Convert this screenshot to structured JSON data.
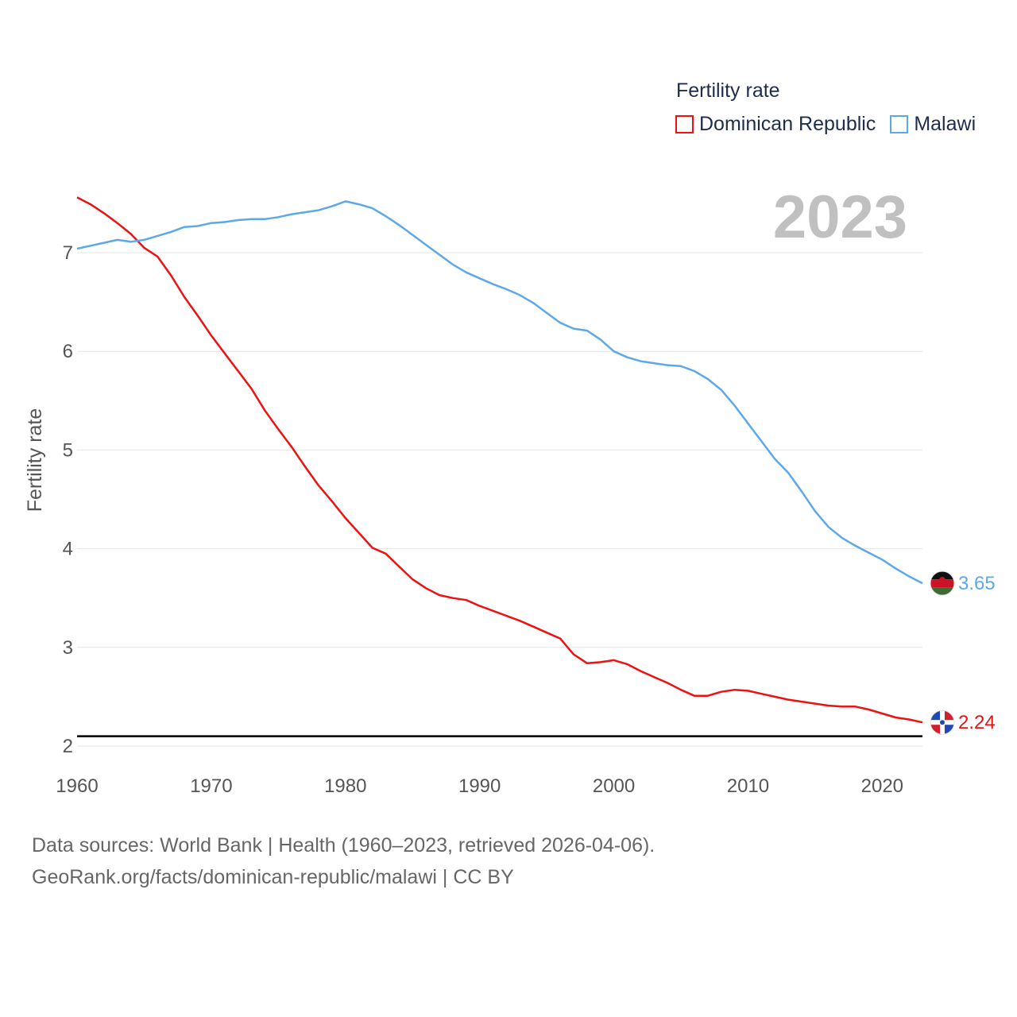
{
  "legend": {
    "title": "Fertility rate"
  },
  "year_label": "2023",
  "footer": {
    "line1": "Data sources: World Bank | Health (1960–2023, retrieved 2026-04-06).",
    "line2": "GeoRank.org/facts/dominican-republic/malawi | CC BY"
  },
  "colors": {
    "dominican": "#ee1111",
    "malawi": "#5fa8e8",
    "grid": "#e6e6e6",
    "axis_text": "#555555",
    "reference_line": "#000000"
  },
  "chart_data": {
    "type": "line",
    "title": "Fertility rate",
    "xlabel": "",
    "ylabel": "Fertility rate",
    "xlim": [
      1960,
      2023
    ],
    "ylim": [
      2,
      7.6
    ],
    "xticks": [
      1960,
      1970,
      1980,
      1990,
      2000,
      2010,
      2020
    ],
    "yticks": [
      2,
      3,
      4,
      5,
      6,
      7
    ],
    "reference_line": 2.1,
    "x": [
      1960,
      1961,
      1962,
      1963,
      1964,
      1965,
      1966,
      1967,
      1968,
      1969,
      1970,
      1971,
      1972,
      1973,
      1974,
      1975,
      1976,
      1977,
      1978,
      1979,
      1980,
      1981,
      1982,
      1983,
      1984,
      1985,
      1986,
      1987,
      1988,
      1989,
      1990,
      1991,
      1992,
      1993,
      1994,
      1995,
      1996,
      1997,
      1998,
      1999,
      2000,
      2001,
      2002,
      2003,
      2004,
      2005,
      2006,
      2007,
      2008,
      2009,
      2010,
      2011,
      2012,
      2013,
      2014,
      2015,
      2016,
      2017,
      2018,
      2019,
      2020,
      2021,
      2022,
      2023
    ],
    "series": [
      {
        "name": "Dominican Republic",
        "color": "#ee1111",
        "end_label": "2.24",
        "values": [
          7.56,
          7.49,
          7.4,
          7.3,
          7.19,
          7.05,
          6.96,
          6.77,
          6.55,
          6.36,
          6.16,
          5.98,
          5.8,
          5.62,
          5.4,
          5.21,
          5.03,
          4.83,
          4.64,
          4.48,
          4.31,
          4.16,
          4.01,
          3.95,
          3.82,
          3.69,
          3.6,
          3.53,
          3.5,
          3.48,
          3.42,
          3.37,
          3.32,
          3.27,
          3.21,
          3.15,
          3.09,
          2.93,
          2.84,
          2.85,
          2.87,
          2.83,
          2.76,
          2.7,
          2.64,
          2.57,
          2.51,
          2.51,
          2.55,
          2.57,
          2.56,
          2.53,
          2.5,
          2.47,
          2.45,
          2.43,
          2.41,
          2.4,
          2.4,
          2.37,
          2.33,
          2.29,
          2.27,
          2.24
        ]
      },
      {
        "name": "Malawi",
        "color": "#5fa8e8",
        "end_label": "3.65",
        "values": [
          7.04,
          7.07,
          7.1,
          7.13,
          7.11,
          7.13,
          7.17,
          7.21,
          7.26,
          7.27,
          7.3,
          7.31,
          7.33,
          7.34,
          7.34,
          7.36,
          7.39,
          7.41,
          7.43,
          7.47,
          7.52,
          7.49,
          7.45,
          7.37,
          7.28,
          7.18,
          7.08,
          6.98,
          6.88,
          6.8,
          6.74,
          6.68,
          6.63,
          6.57,
          6.49,
          6.39,
          6.29,
          6.23,
          6.21,
          6.12,
          6.0,
          5.94,
          5.9,
          5.88,
          5.86,
          5.85,
          5.8,
          5.72,
          5.61,
          5.45,
          5.27,
          5.09,
          4.91,
          4.77,
          4.58,
          4.38,
          4.22,
          4.11,
          4.03,
          3.96,
          3.89,
          3.8,
          3.72,
          3.65
        ]
      }
    ]
  }
}
